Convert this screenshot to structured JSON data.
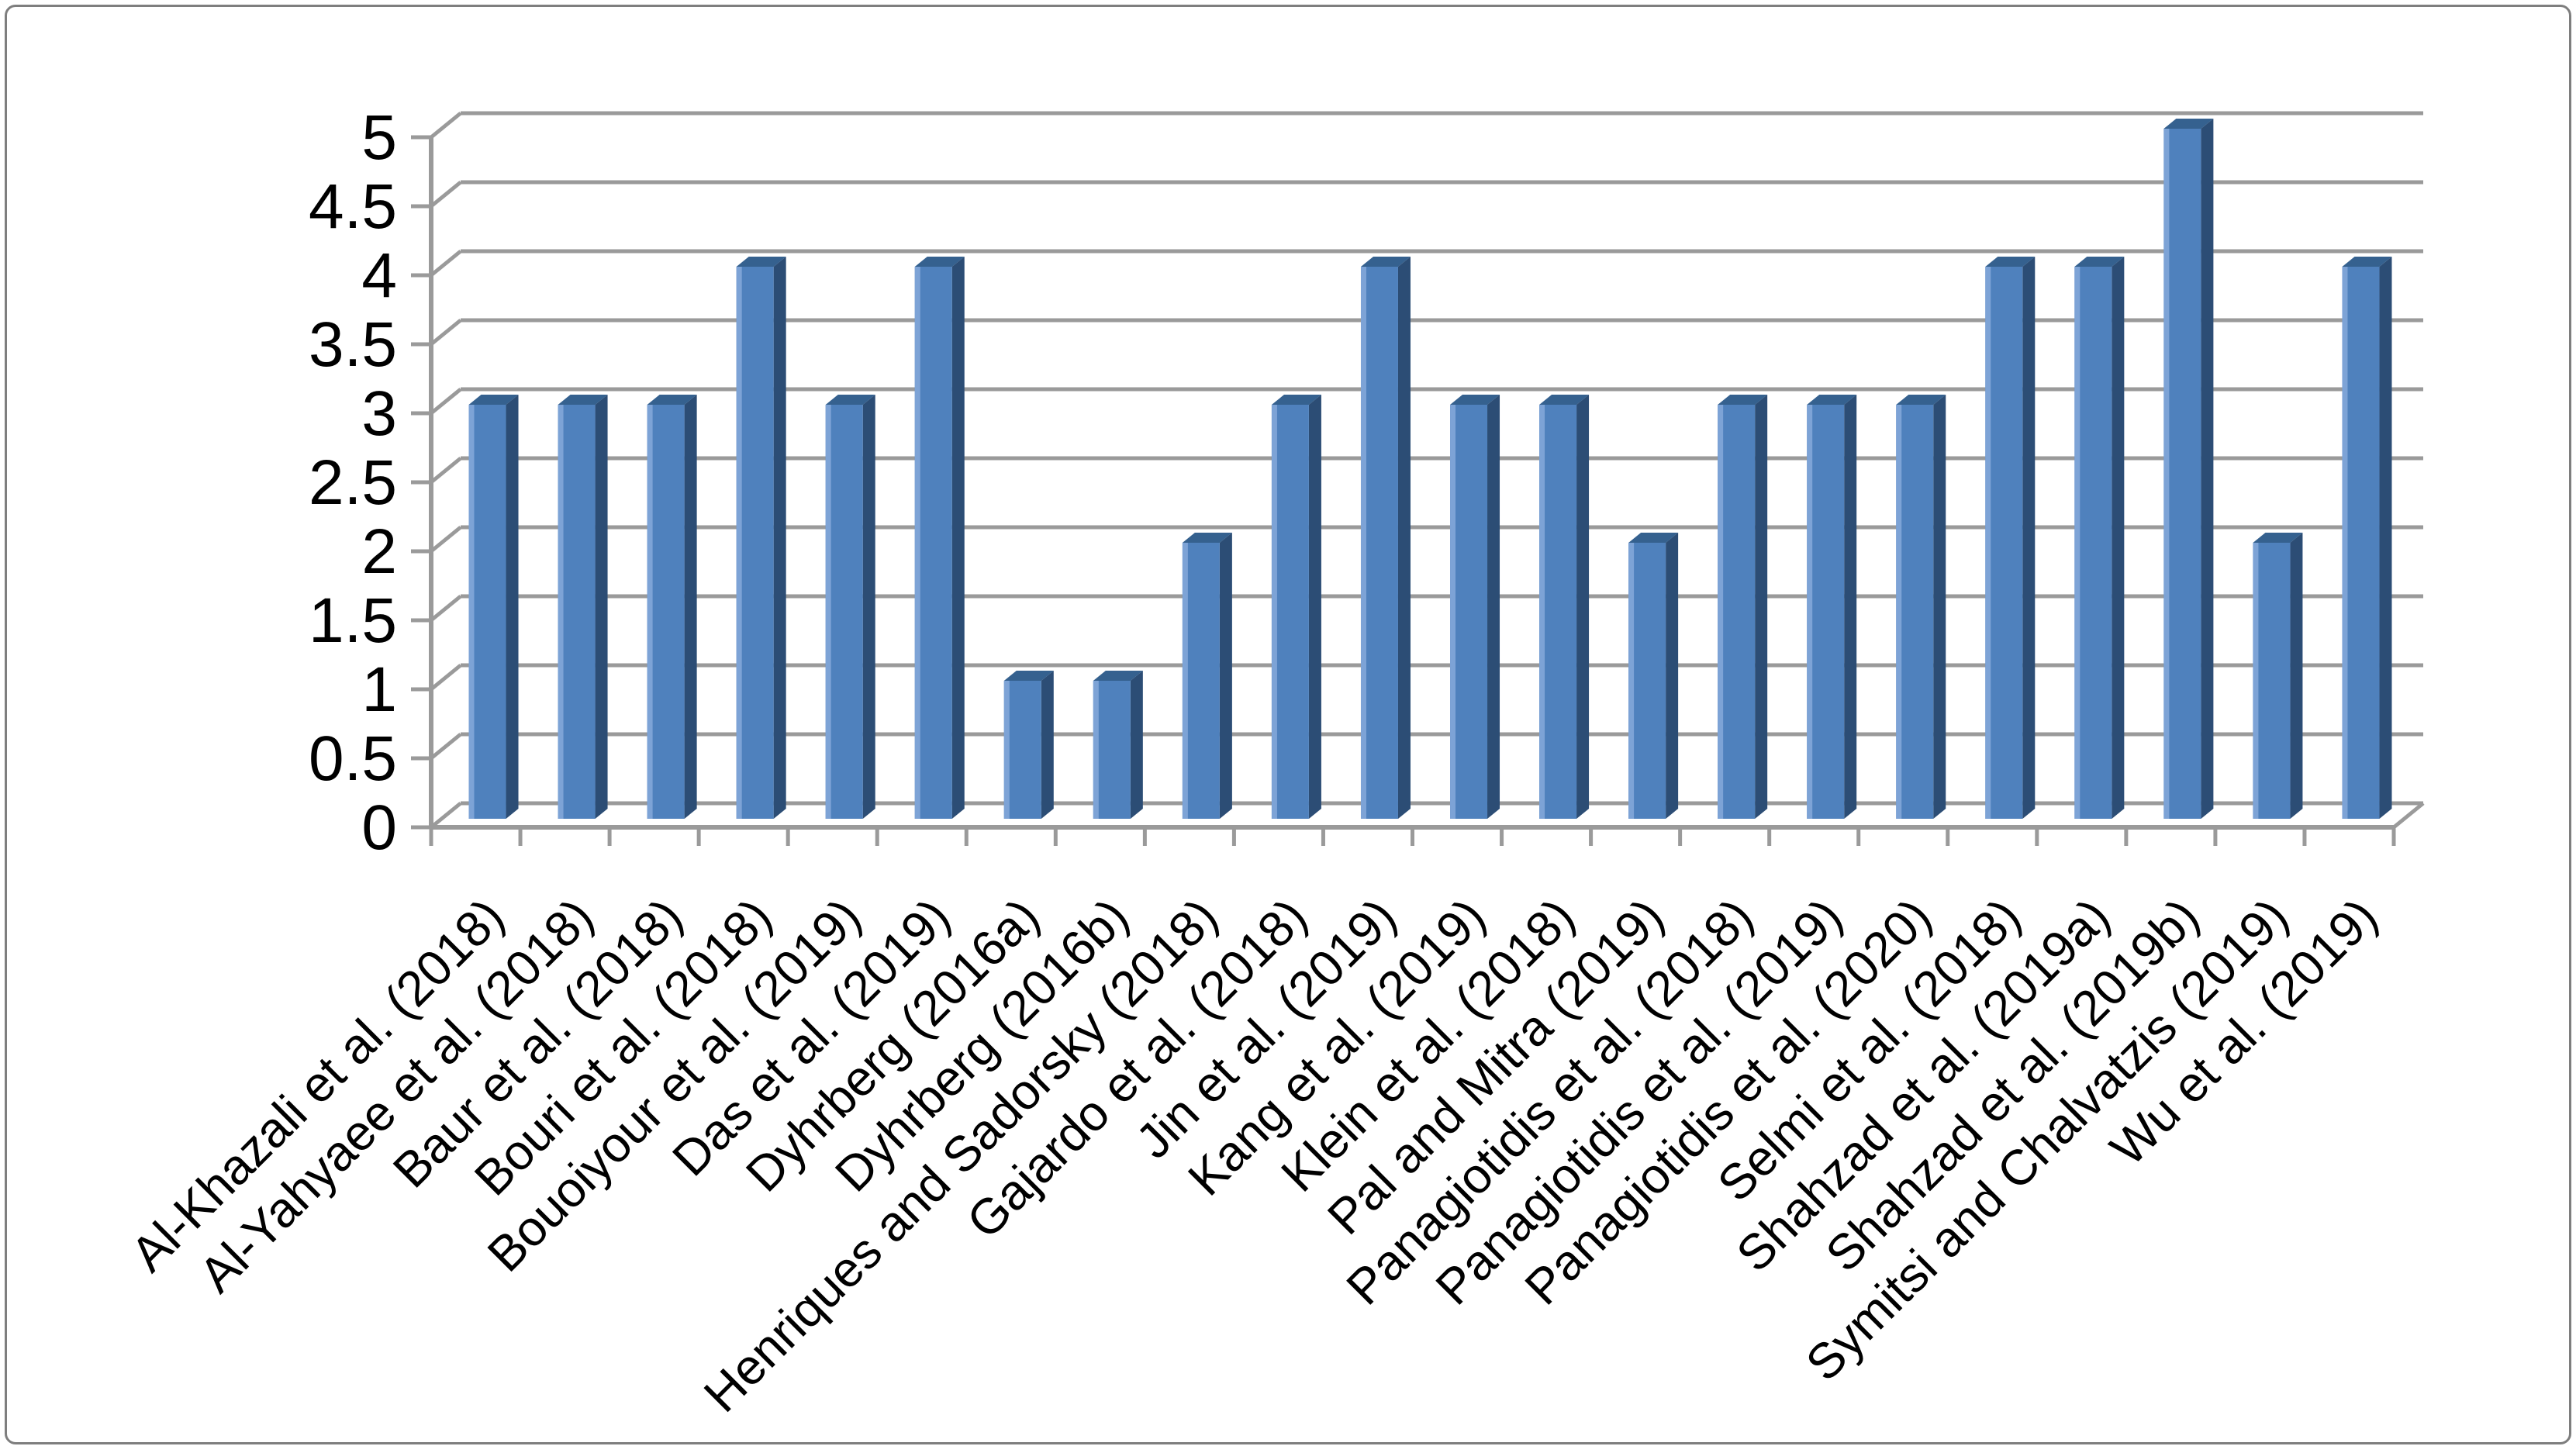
{
  "figure": {
    "background": "#ffffff",
    "border_color": "#7e7e7e"
  },
  "chart_data": {
    "type": "bar",
    "style": "3d-column",
    "title": "",
    "xlabel": "",
    "ylabel": "",
    "categories": [
      "Al-Khazali et al. (2018)",
      "Al-Yahyaee et al. (2018)",
      "Baur et al. (2018)",
      "Bouri et al. (2018)",
      "Bouoiyour et al. (2019)",
      "Das et al. (2019)",
      "Dyhrberg (2016a)",
      "Dyhrberg (2016b)",
      "Henriques and Sadorsky (2018)",
      "Gajardo et al. (2018)",
      "Jin et al. (2019)",
      "Kang et al. (2019)",
      "Klein et al. (2018)",
      "Pal and Mitra (2019)",
      "Panagiotidis et al. (2018)",
      "Panagiotidis et al. (2019)",
      "Panagiotidis et al. (2020)",
      "Selmi et al. (2018)",
      "Shahzad et al. (2019a)",
      "Shahzad et al. (2019b)",
      "Symitsi and Chalvatzis (2019)",
      "Wu et al. (2019)"
    ],
    "values": [
      3,
      3,
      3,
      4,
      3,
      4,
      1,
      1,
      2,
      3,
      4,
      3,
      3,
      2,
      3,
      3,
      3,
      4,
      4,
      5,
      2,
      4
    ],
    "ylim": [
      0,
      5
    ],
    "ytick_step": 0.5,
    "ytick_labels": [
      "0",
      "0.5",
      "1",
      "1.5",
      "2",
      "2.5",
      "3",
      "3.5",
      "4",
      "4.5",
      "5"
    ],
    "grid": true,
    "legend": false,
    "colors": {
      "bar_front": "#4f81bd",
      "bar_highlight": "#7da3d6",
      "bar_side": "#2c4d75",
      "bar_top": "#35618f",
      "grid": "#9a9a9a",
      "text": "#000000"
    }
  }
}
